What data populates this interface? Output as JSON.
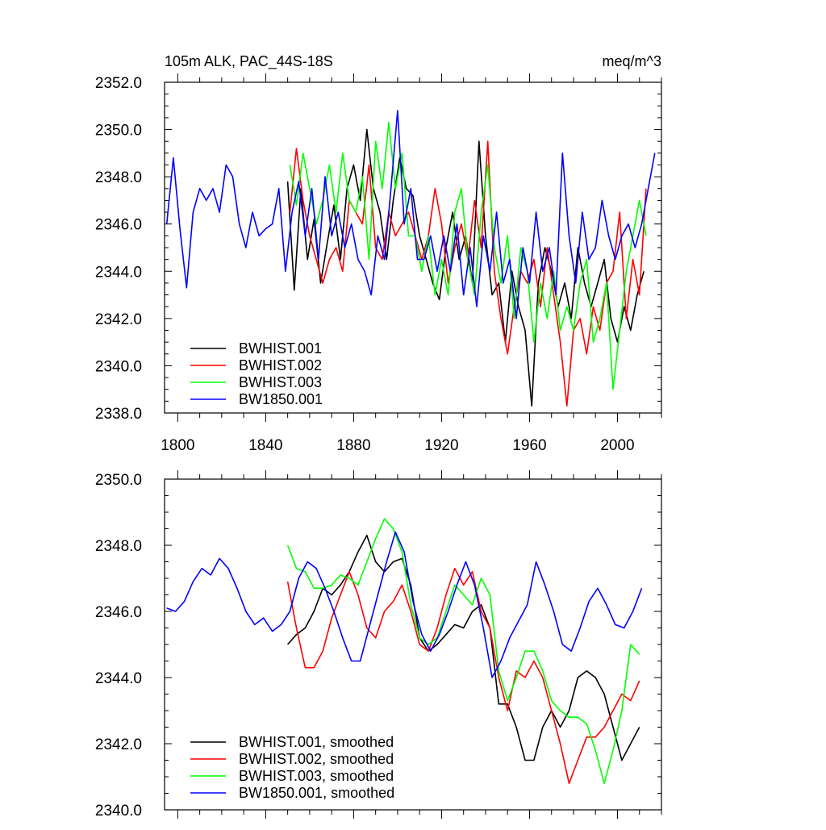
{
  "colors": {
    "black": "#000000",
    "red": "#ff0000",
    "green": "#00ff00",
    "blue": "#0000ff"
  },
  "chart_data": [
    {
      "type": "line",
      "title_left": "105m ALK, PAC_44S-18S",
      "title_right": "meq/m^3",
      "xlim": [
        1794,
        2020
      ],
      "ylim": [
        2338,
        2352
      ],
      "yticks": [
        "2338.0",
        "2340.0",
        "2342.0",
        "2344.0",
        "2346.0",
        "2348.0",
        "2350.0",
        "2352.0"
      ],
      "xticks": [
        "1800",
        "1840",
        "1880",
        "1920",
        "1960",
        "2000"
      ],
      "legend_position": "bottom-left",
      "series": [
        {
          "name": "BWHIST.001",
          "color": "#000000",
          "x": [
            1850,
            1853,
            1856,
            1859,
            1862,
            1865,
            1868,
            1871,
            1874,
            1877,
            1880,
            1883,
            1886,
            1889,
            1892,
            1895,
            1898,
            1901,
            1904,
            1907,
            1910,
            1913,
            1916,
            1919,
            1922,
            1925,
            1928,
            1931,
            1934,
            1937,
            1940,
            1943,
            1946,
            1949,
            1952,
            1955,
            1958,
            1961,
            1964,
            1967,
            1970,
            1973,
            1976,
            1979,
            1982,
            1985,
            1988,
            1991,
            1994,
            1997,
            2000,
            2003,
            2006,
            2009,
            2012
          ],
          "y": [
            2347.8,
            2343.2,
            2347.5,
            2344.5,
            2346.2,
            2343.5,
            2345.2,
            2346.8,
            2344.5,
            2347.5,
            2348.5,
            2347.0,
            2350.0,
            2347.5,
            2346.5,
            2344.5,
            2347.0,
            2348.8,
            2347.5,
            2347.2,
            2345.5,
            2344.5,
            2343.5,
            2342.8,
            2345.0,
            2346.5,
            2344.5,
            2345.5,
            2343.5,
            2349.5,
            2345.5,
            2343.0,
            2343.5,
            2341.0,
            2344.0,
            2342.5,
            2341.5,
            2338.3,
            2343.5,
            2345.0,
            2344.0,
            2342.5,
            2343.5,
            2342.0,
            2345.0,
            2343.5,
            2342.5,
            2343.5,
            2344.5,
            2342.0,
            2341.0,
            2342.5,
            2341.5,
            2343.0,
            2344.0
          ]
        },
        {
          "name": "BWHIST.002",
          "color": "#ff0000",
          "x": [
            1851,
            1854,
            1857,
            1860,
            1863,
            1866,
            1869,
            1872,
            1875,
            1878,
            1881,
            1884,
            1887,
            1890,
            1893,
            1896,
            1899,
            1902,
            1905,
            1908,
            1911,
            1914,
            1917,
            1920,
            1923,
            1926,
            1929,
            1932,
            1935,
            1938,
            1941,
            1944,
            1947,
            1950,
            1953,
            1956,
            1959,
            1962,
            1965,
            1968,
            1971,
            1974,
            1977,
            1980,
            1983,
            1986,
            1989,
            1992,
            1995,
            1998,
            2001,
            2004,
            2007,
            2010,
            2013
          ],
          "y": [
            2346.5,
            2349.2,
            2347.0,
            2345.5,
            2344.5,
            2343.5,
            2344.5,
            2345.0,
            2344.0,
            2347.0,
            2346.5,
            2346.0,
            2348.5,
            2345.0,
            2344.5,
            2346.5,
            2345.5,
            2346.0,
            2346.5,
            2345.5,
            2344.5,
            2345.5,
            2347.5,
            2346.0,
            2343.5,
            2345.0,
            2346.0,
            2344.5,
            2347.0,
            2345.0,
            2349.5,
            2344.0,
            2342.0,
            2340.5,
            2342.5,
            2344.0,
            2343.5,
            2344.5,
            2342.5,
            2345.0,
            2343.0,
            2341.0,
            2338.3,
            2341.5,
            2342.0,
            2340.5,
            2342.5,
            2341.5,
            2343.5,
            2344.0,
            2346.5,
            2342.0,
            2344.5,
            2343.0,
            2347.5
          ]
        },
        {
          "name": "BWHIST.003",
          "color": "#00ff00",
          "x": [
            1851,
            1854,
            1857,
            1860,
            1863,
            1866,
            1869,
            1872,
            1875,
            1878,
            1881,
            1884,
            1887,
            1890,
            1893,
            1896,
            1899,
            1902,
            1905,
            1908,
            1911,
            1914,
            1917,
            1920,
            1923,
            1926,
            1929,
            1932,
            1935,
            1938,
            1941,
            1944,
            1947,
            1950,
            1953,
            1956,
            1959,
            1962,
            1965,
            1968,
            1971,
            1974,
            1977,
            1980,
            1983,
            1986,
            1989,
            1992,
            1995,
            1998,
            2001,
            2004,
            2007,
            2010,
            2013
          ],
          "y": [
            2348.5,
            2346.8,
            2349.0,
            2347.5,
            2346.0,
            2347.0,
            2348.5,
            2346.5,
            2349.0,
            2347.0,
            2346.5,
            2348.0,
            2344.5,
            2349.5,
            2347.5,
            2350.3,
            2347.5,
            2349.0,
            2345.5,
            2345.5,
            2344.0,
            2345.5,
            2343.0,
            2344.5,
            2343.0,
            2346.5,
            2347.5,
            2344.5,
            2343.0,
            2346.5,
            2348.5,
            2345.0,
            2343.5,
            2345.5,
            2342.0,
            2345.0,
            2344.0,
            2341.0,
            2343.5,
            2342.0,
            2344.0,
            2341.5,
            2342.5,
            2341.5,
            2343.5,
            2344.5,
            2341.0,
            2342.0,
            2343.5,
            2339.0,
            2341.5,
            2344.0,
            2345.5,
            2347.0,
            2345.5
          ]
        },
        {
          "name": "BW1850.001",
          "color": "#0000ff",
          "x": [
            1795,
            1798,
            1801,
            1804,
            1807,
            1810,
            1813,
            1816,
            1819,
            1822,
            1825,
            1828,
            1831,
            1834,
            1837,
            1840,
            1843,
            1846,
            1849,
            1852,
            1855,
            1858,
            1861,
            1864,
            1867,
            1870,
            1873,
            1876,
            1879,
            1882,
            1885,
            1888,
            1891,
            1894,
            1897,
            1900,
            1903,
            1906,
            1909,
            1912,
            1915,
            1918,
            1921,
            1924,
            1927,
            1930,
            1933,
            1936,
            1939,
            1942,
            1945,
            1948,
            1951,
            1954,
            1957,
            1960,
            1963,
            1966,
            1969,
            1972,
            1975,
            1978,
            1981,
            1984,
            1987,
            1990,
            1993,
            1996,
            1999,
            2002,
            2005,
            2008,
            2011,
            2014,
            2017
          ],
          "y": [
            2346.0,
            2348.8,
            2345.8,
            2343.3,
            2346.5,
            2347.5,
            2347.0,
            2347.5,
            2346.5,
            2348.5,
            2348.0,
            2346.0,
            2345.0,
            2346.5,
            2345.5,
            2345.8,
            2346.0,
            2347.5,
            2344.0,
            2346.5,
            2347.8,
            2345.5,
            2347.5,
            2344.5,
            2348.0,
            2345.5,
            2346.5,
            2345.0,
            2346.0,
            2344.5,
            2344.0,
            2343.0,
            2345.5,
            2344.5,
            2347.5,
            2350.8,
            2346.0,
            2347.5,
            2344.5,
            2344.5,
            2345.5,
            2344.0,
            2345.5,
            2344.0,
            2346.0,
            2343.0,
            2345.0,
            2342.5,
            2345.5,
            2344.0,
            2346.5,
            2343.5,
            2344.5,
            2342.0,
            2345.0,
            2343.5,
            2346.5,
            2344.0,
            2345.0,
            2343.0,
            2349.0,
            2345.5,
            2343.5,
            2346.5,
            2344.5,
            2345.0,
            2347.0,
            2345.5,
            2344.5,
            2345.5,
            2346.0,
            2345.0,
            2346.0,
            2347.5,
            2349.0
          ]
        }
      ]
    },
    {
      "type": "line",
      "xlim": [
        1794,
        2020
      ],
      "ylim": [
        2340,
        2350
      ],
      "yticks": [
        "2340.0",
        "2342.0",
        "2344.0",
        "2346.0",
        "2348.0",
        "2350.0"
      ],
      "legend_position": "bottom-left",
      "series": [
        {
          "name": "BWHIST.001, smoothed",
          "color": "#000000",
          "x": [
            1850,
            1854,
            1858,
            1862,
            1866,
            1870,
            1874,
            1878,
            1882,
            1886,
            1890,
            1894,
            1898,
            1902,
            1906,
            1910,
            1914,
            1918,
            1922,
            1926,
            1930,
            1934,
            1938,
            1942,
            1946,
            1950,
            1954,
            1958,
            1962,
            1966,
            1970,
            1974,
            1978,
            1982,
            1986,
            1990,
            1994,
            1998,
            2002,
            2006,
            2010
          ],
          "y": [
            2345.0,
            2345.3,
            2345.5,
            2346.0,
            2346.7,
            2346.5,
            2346.8,
            2347.2,
            2347.8,
            2348.3,
            2347.5,
            2347.2,
            2347.5,
            2347.6,
            2346.8,
            2345.2,
            2344.8,
            2345.0,
            2345.3,
            2345.6,
            2345.5,
            2346.0,
            2346.2,
            2345.5,
            2343.2,
            2343.2,
            2342.5,
            2341.5,
            2341.5,
            2342.5,
            2343.0,
            2342.5,
            2343.0,
            2344.0,
            2344.2,
            2344.0,
            2343.5,
            2342.5,
            2341.5,
            2342.0,
            2342.5
          ]
        },
        {
          "name": "BWHIST.002, smoothed",
          "color": "#ff0000",
          "x": [
            1850,
            1854,
            1858,
            1862,
            1866,
            1870,
            1874,
            1878,
            1882,
            1886,
            1890,
            1894,
            1898,
            1902,
            1906,
            1910,
            1914,
            1918,
            1922,
            1926,
            1930,
            1934,
            1938,
            1942,
            1946,
            1950,
            1954,
            1958,
            1962,
            1966,
            1970,
            1974,
            1978,
            1982,
            1986,
            1990,
            1994,
            1998,
            2002,
            2006,
            2010
          ],
          "y": [
            2346.9,
            2345.5,
            2344.3,
            2344.3,
            2344.8,
            2345.8,
            2346.5,
            2347.2,
            2346.5,
            2345.5,
            2345.2,
            2346.0,
            2346.3,
            2346.8,
            2346.0,
            2345.0,
            2344.8,
            2345.5,
            2346.5,
            2347.3,
            2346.8,
            2347.2,
            2346.0,
            2345.5,
            2344.0,
            2343.0,
            2344.2,
            2344.0,
            2344.5,
            2344.0,
            2343.0,
            2342.0,
            2340.8,
            2341.5,
            2342.2,
            2342.2,
            2342.5,
            2343.0,
            2343.5,
            2343.3,
            2343.9
          ]
        },
        {
          "name": "BWHIST.003, smoothed",
          "color": "#00ff00",
          "x": [
            1850,
            1854,
            1858,
            1862,
            1866,
            1870,
            1874,
            1878,
            1882,
            1886,
            1890,
            1894,
            1898,
            1902,
            1906,
            1910,
            1914,
            1918,
            1922,
            1926,
            1930,
            1934,
            1938,
            1942,
            1946,
            1950,
            1954,
            1958,
            1962,
            1966,
            1970,
            1974,
            1978,
            1982,
            1986,
            1990,
            1994,
            1998,
            2002,
            2006,
            2010
          ],
          "y": [
            2348.0,
            2347.3,
            2347.2,
            2346.7,
            2346.7,
            2346.8,
            2347.1,
            2347.0,
            2346.8,
            2347.5,
            2348.2,
            2348.8,
            2348.5,
            2347.8,
            2346.2,
            2345.2,
            2345.0,
            2345.2,
            2346.0,
            2346.8,
            2346.5,
            2346.2,
            2347.0,
            2346.5,
            2344.2,
            2343.3,
            2344.0,
            2344.8,
            2344.8,
            2344.2,
            2343.3,
            2343.0,
            2342.8,
            2342.8,
            2342.6,
            2341.8,
            2340.8,
            2341.8,
            2343.0,
            2345.0,
            2344.7
          ]
        },
        {
          "name": "BW1850.001, smoothed",
          "color": "#0000ff",
          "x": [
            1795,
            1799,
            1803,
            1807,
            1811,
            1815,
            1819,
            1823,
            1827,
            1831,
            1835,
            1839,
            1843,
            1847,
            1851,
            1855,
            1859,
            1863,
            1867,
            1871,
            1875,
            1879,
            1883,
            1887,
            1891,
            1895,
            1899,
            1903,
            1907,
            1911,
            1915,
            1919,
            1923,
            1927,
            1931,
            1935,
            1939,
            1943,
            1947,
            1951,
            1955,
            1959,
            1963,
            1967,
            1971,
            1975,
            1979,
            1983,
            1987,
            1991,
            1995,
            1999,
            2003,
            2007,
            2011
          ],
          "y": [
            2346.1,
            2346.0,
            2346.3,
            2346.9,
            2347.3,
            2347.1,
            2347.6,
            2347.3,
            2346.7,
            2346.0,
            2345.6,
            2345.8,
            2345.4,
            2345.6,
            2346.0,
            2347.0,
            2347.5,
            2347.3,
            2346.7,
            2346.0,
            2345.2,
            2344.5,
            2344.5,
            2345.5,
            2346.5,
            2347.5,
            2348.4,
            2347.8,
            2346.3,
            2345.3,
            2344.8,
            2345.3,
            2346.0,
            2346.8,
            2347.5,
            2346.8,
            2345.5,
            2344.0,
            2344.5,
            2345.2,
            2345.7,
            2346.2,
            2347.5,
            2346.8,
            2346.0,
            2345.0,
            2344.8,
            2345.5,
            2346.3,
            2346.7,
            2346.2,
            2345.6,
            2345.5,
            2346.0,
            2346.7
          ]
        }
      ]
    }
  ]
}
